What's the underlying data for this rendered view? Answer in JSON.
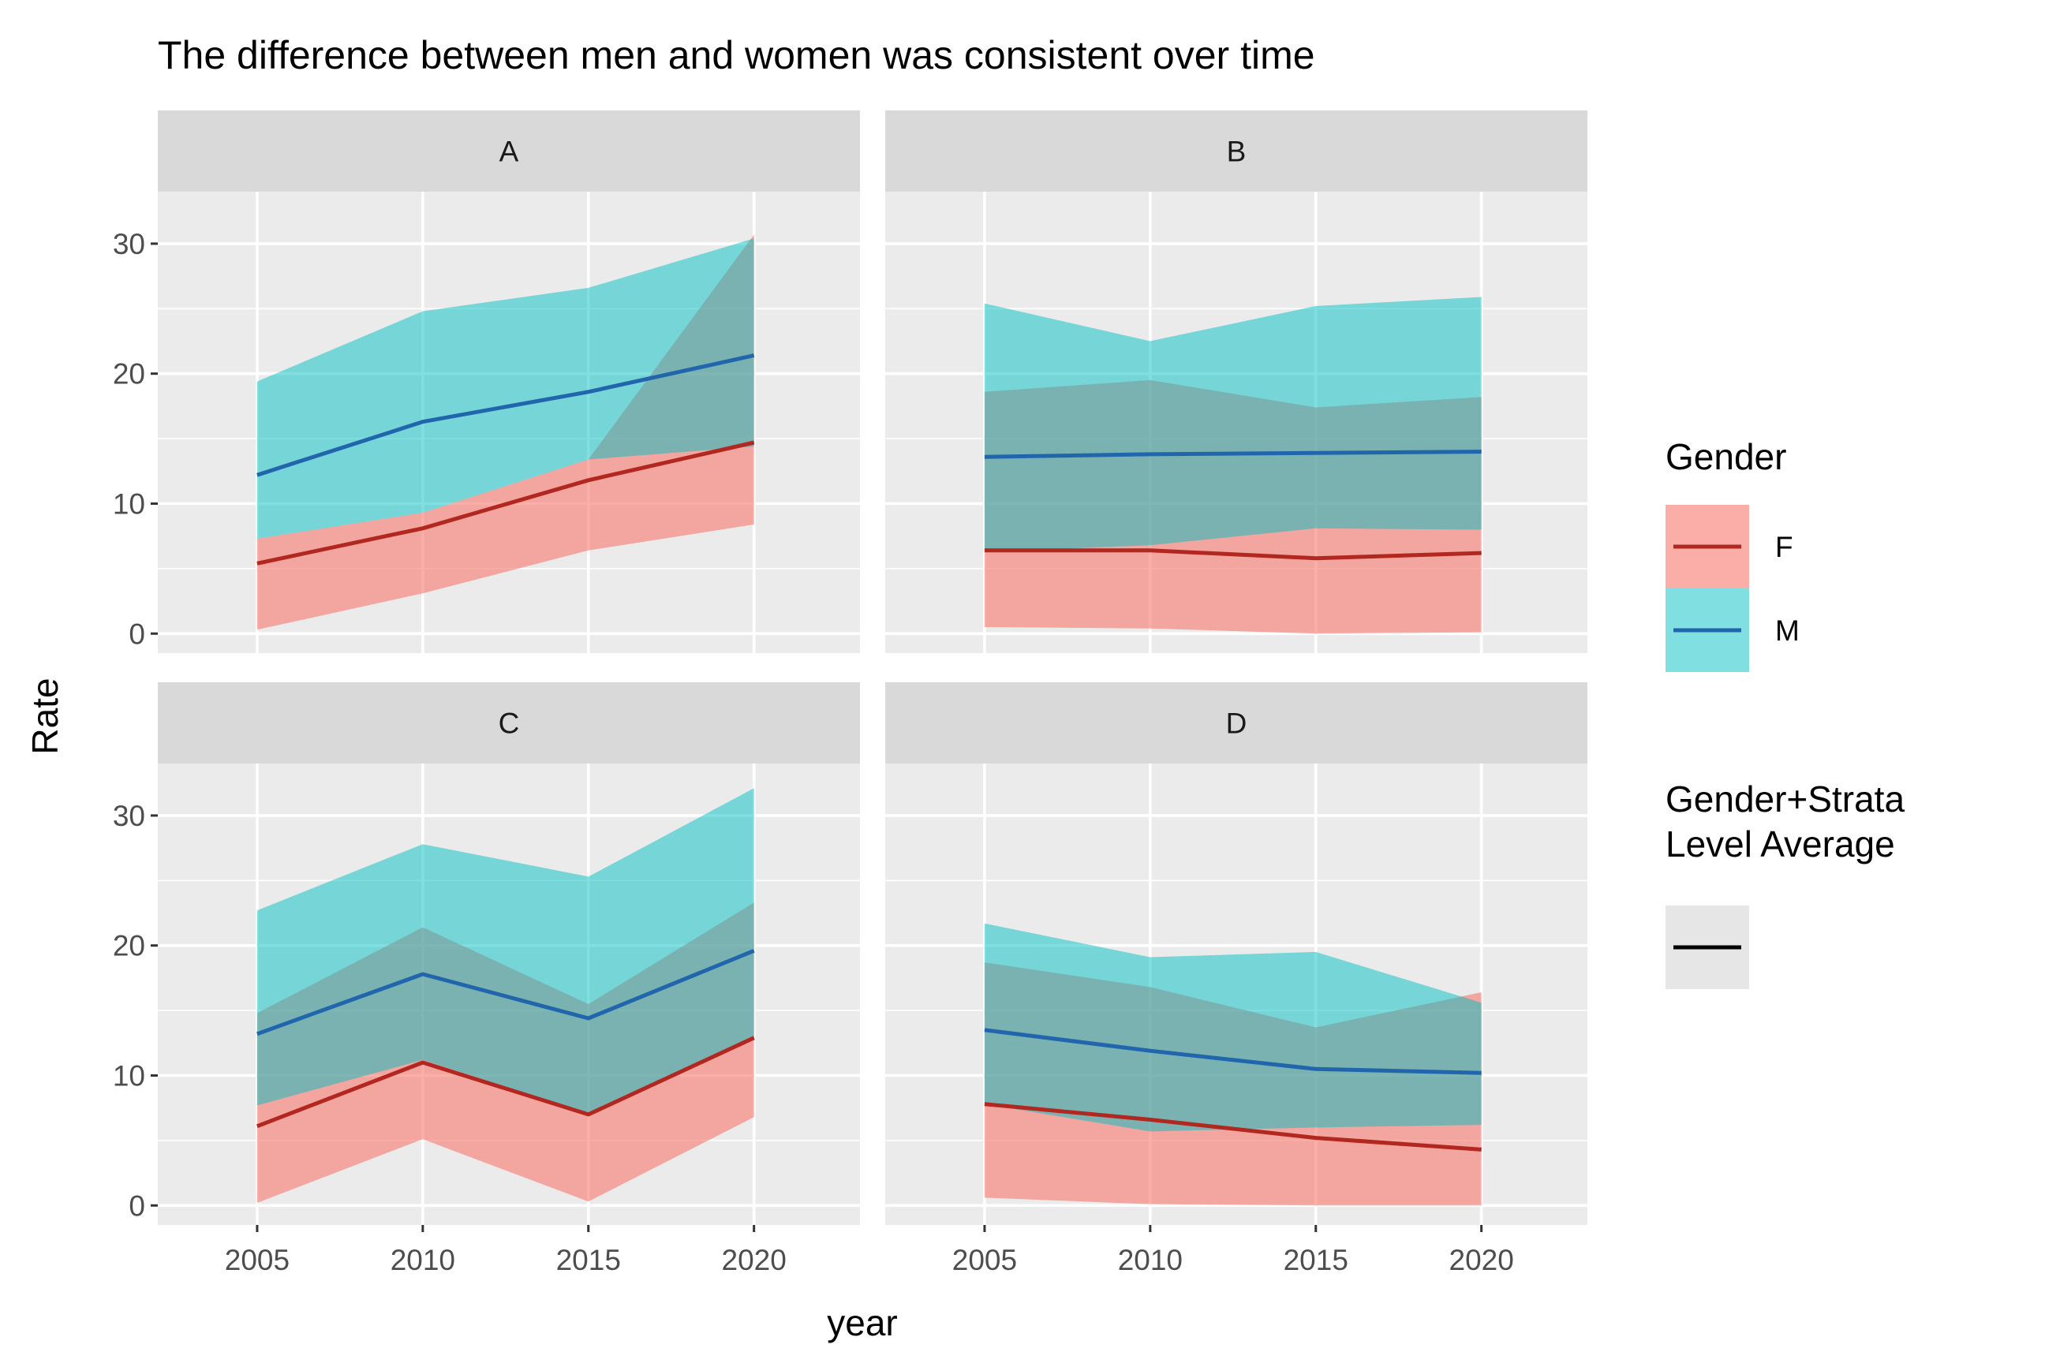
{
  "chart_data": {
    "type": "line",
    "subtype": "faceted line chart with ribbons",
    "title": "The difference between men and women was consistent over time",
    "xlabel": "year",
    "ylabel": "Rate",
    "x_ticks": [
      2005,
      2010,
      2015,
      2020
    ],
    "y_ticks": [
      0,
      10,
      20,
      30
    ],
    "xlim": [
      2002,
      2023.2
    ],
    "ylim": [
      -1.5,
      34
    ],
    "grid": true,
    "legend_position": "right",
    "legend": {
      "gender_title": "Gender",
      "entries": [
        {
          "label": "F",
          "line_color": "#B2271F",
          "fill_color": "#F8766D"
        },
        {
          "label": "M",
          "line_color": "#2166AC",
          "fill_color": "#00BFC4"
        }
      ],
      "average_title_line1": "Gender+Strata",
      "average_title_line2": "Level Average"
    },
    "x": [
      2005,
      2010,
      2015,
      2020
    ],
    "panels": [
      {
        "label": "A",
        "series": [
          {
            "name": "F",
            "mean": [
              5.4,
              8.1,
              11.8,
              14.7
            ],
            "lower": [
              0.3,
              3.1,
              6.4,
              8.4
            ],
            "upper": [
              7.3,
              9.3,
              13.4,
              30.7
            ]
          },
          {
            "name": "M",
            "mean": [
              12.2,
              16.3,
              18.6,
              21.4
            ],
            "lower": [
              7.3,
              9.3,
              13.4,
              14.4
            ],
            "upper": [
              19.4,
              24.8,
              26.6,
              30.4
            ]
          }
        ]
      },
      {
        "label": "B",
        "series": [
          {
            "name": "F",
            "mean": [
              6.4,
              6.4,
              5.8,
              6.2
            ],
            "lower": [
              0.5,
              0.4,
              0.0,
              0.1
            ],
            "upper": [
              18.6,
              19.5,
              17.4,
              18.2
            ]
          },
          {
            "name": "M",
            "mean": [
              13.6,
              13.8,
              13.9,
              14.0
            ],
            "lower": [
              6.3,
              6.8,
              8.1,
              8.0
            ],
            "upper": [
              25.4,
              22.5,
              25.2,
              25.9
            ]
          }
        ]
      },
      {
        "label": "C",
        "series": [
          {
            "name": "F",
            "mean": [
              6.1,
              11.0,
              7.0,
              12.9
            ],
            "lower": [
              0.2,
              5.1,
              0.3,
              6.8
            ],
            "upper": [
              14.8,
              21.4,
              15.5,
              23.3
            ]
          },
          {
            "name": "M",
            "mean": [
              13.2,
              17.8,
              14.4,
              19.6
            ],
            "lower": [
              7.7,
              11.2,
              7.1,
              12.9
            ],
            "upper": [
              22.7,
              27.8,
              25.3,
              32.1
            ]
          }
        ]
      },
      {
        "label": "D",
        "series": [
          {
            "name": "F",
            "mean": [
              7.8,
              6.6,
              5.2,
              4.3
            ],
            "lower": [
              0.6,
              0.1,
              0.0,
              0.0
            ],
            "upper": [
              18.7,
              16.8,
              13.7,
              16.4
            ]
          },
          {
            "name": "M",
            "mean": [
              13.5,
              11.9,
              10.5,
              10.2
            ],
            "lower": [
              7.8,
              5.7,
              6.0,
              6.2
            ],
            "upper": [
              21.7,
              19.1,
              19.5,
              15.6
            ]
          }
        ]
      }
    ]
  }
}
